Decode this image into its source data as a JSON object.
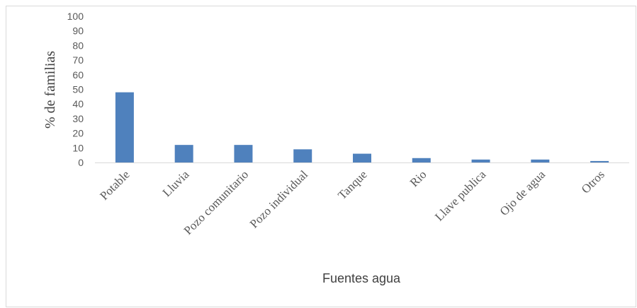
{
  "chart_data": {
    "type": "bar",
    "title": "",
    "xlabel": "Fuentes agua",
    "ylabel": "% de familias",
    "ylim": [
      0,
      100
    ],
    "yticks": [
      0,
      10,
      20,
      30,
      40,
      50,
      60,
      70,
      80,
      90,
      100
    ],
    "grid": false,
    "legend": "none",
    "bar_color": "#4f81bd",
    "categories": [
      "Potable",
      "Lluvia",
      "Pozo comunitario",
      "Pozo individual",
      "Tanque",
      "Rio",
      "Llave publica",
      "Ojo de agua",
      "Otros"
    ],
    "values": [
      48,
      12,
      12,
      9,
      6,
      3,
      2,
      2,
      1
    ]
  }
}
